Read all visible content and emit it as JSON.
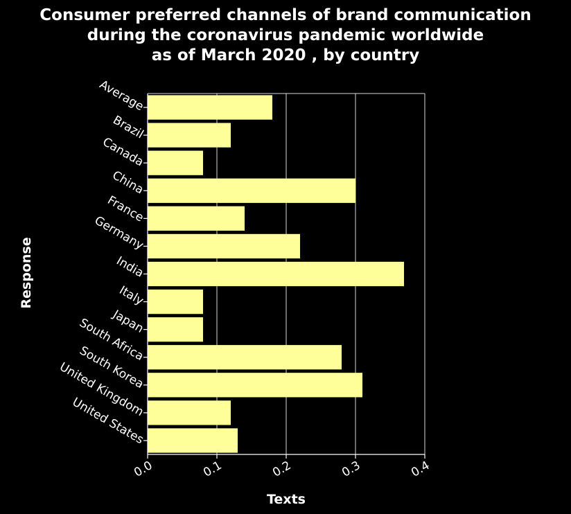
{
  "chart_data": {
    "type": "bar",
    "orientation": "horizontal",
    "title_lines": [
      "Consumer preferred channels of brand communication",
      "during the coronavirus pandemic worldwide",
      "as of March 2020 , by country"
    ],
    "xlabel": "Texts",
    "ylabel": "Response",
    "categories": [
      "Average",
      "Brazil",
      "Canada",
      "China",
      "France",
      "Germany",
      "India",
      "Italy",
      "Japan",
      "South Africa",
      "South Korea",
      "United Kingdom",
      "United States"
    ],
    "values": [
      0.18,
      0.12,
      0.08,
      0.3,
      0.14,
      0.22,
      0.37,
      0.08,
      0.08,
      0.28,
      0.31,
      0.12,
      0.13
    ],
    "xlim": [
      0,
      0.4
    ],
    "xticks": [
      "0.0",
      "0.1",
      "0.2",
      "0.3",
      "0.4"
    ],
    "grid": "vertical",
    "legend": "none",
    "colors": {
      "background": "#000000",
      "bar": "#ffff99",
      "text": "#ffffff",
      "grid": "#ffffff"
    }
  }
}
